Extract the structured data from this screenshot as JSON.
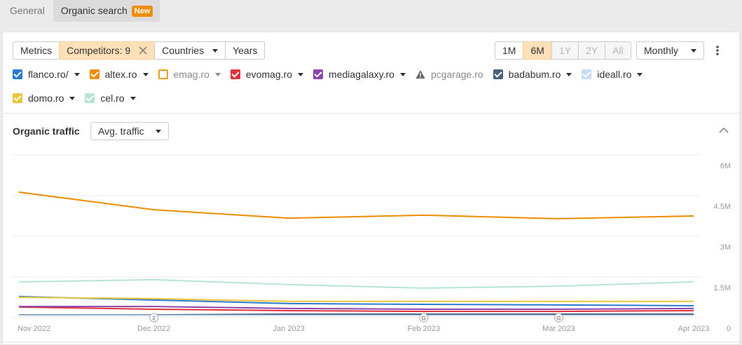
{
  "tabs": [
    {
      "label": "General",
      "active": false
    },
    {
      "label": "Organic search",
      "active": true,
      "badge": "New"
    }
  ],
  "toolbar": {
    "buttons": [
      {
        "label": "Metrics"
      },
      {
        "label": "Competitors: 9",
        "highlighted": true,
        "clearable": true
      },
      {
        "label": "Countries",
        "dropdown": true
      },
      {
        "label": "Years"
      }
    ],
    "ranges": [
      {
        "label": "1M",
        "state": "normal"
      },
      {
        "label": "6M",
        "state": "active"
      },
      {
        "label": "1Y",
        "state": "disabled"
      },
      {
        "label": "2Y",
        "state": "disabled"
      },
      {
        "label": "All",
        "state": "disabled"
      }
    ],
    "interval": "Monthly"
  },
  "section": {
    "title": "Organic traffic",
    "metric": "Avg. traffic"
  },
  "chart_data": {
    "type": "line",
    "categories": [
      "Nov 2022",
      "Dec 2022",
      "Jan 2023",
      "Feb 2023",
      "Mar 2023",
      "Apr 2023"
    ],
    "ylim": [
      0,
      6000000
    ],
    "yticks": [
      0,
      {
        "value": 1500000,
        "label": "1.5M"
      },
      {
        "value": 3000000,
        "label": "3M"
      },
      {
        "value": 4500000,
        "label": "4.5M"
      },
      {
        "value": 6000000,
        "label": "6M"
      }
    ],
    "grid": true,
    "annotations": [
      {
        "x": "Dec 2022",
        "label": "2"
      },
      {
        "x": "Feb 2023",
        "label": "G"
      },
      {
        "x": "Mar 2023",
        "label": "G"
      }
    ],
    "series": [
      {
        "name": "flanco.ro/",
        "color": "#2b7bd0",
        "checked": true,
        "values": [
          780000,
          650000,
          520000,
          490000,
          470000,
          440000
        ]
      },
      {
        "name": "altex.ro",
        "color": "#f08c00",
        "checked": true,
        "values": [
          4630000,
          3980000,
          3670000,
          3780000,
          3650000,
          3750000
        ]
      },
      {
        "name": "emag.ro",
        "color": "#f59a1b",
        "checked": false,
        "values": [
          null,
          null,
          null,
          null,
          null,
          null
        ]
      },
      {
        "name": "evomag.ro",
        "color": "#e0323c",
        "checked": true,
        "values": [
          390000,
          310000,
          260000,
          230000,
          230000,
          260000
        ]
      },
      {
        "name": "mediagalaxy.ro",
        "color": "#8e44ad",
        "checked": true,
        "values": [
          410000,
          410000,
          340000,
          310000,
          310000,
          340000
        ]
      },
      {
        "name": "pcgarage.ro",
        "color": "#888888",
        "checked": false,
        "warning": true,
        "values": [
          null,
          null,
          null,
          null,
          null,
          null
        ]
      },
      {
        "name": "badabum.ro",
        "color": "#4a5f7b",
        "checked": true,
        "values": [
          100000,
          100000,
          130000,
          130000,
          130000,
          130000
        ]
      },
      {
        "name": "ideall.ro",
        "color": "#c6def3",
        "checked": true,
        "values": [
          80000,
          80000,
          80000,
          80000,
          80000,
          80000
        ]
      },
      {
        "name": "domo.ro",
        "color": "#ecc53a",
        "checked": true,
        "values": [
          750000,
          700000,
          600000,
          600000,
          600000,
          600000
        ]
      },
      {
        "name": "cel.ro",
        "color": "#b7e4d8",
        "checked": true,
        "values": [
          1320000,
          1400000,
          1220000,
          1090000,
          1160000,
          1320000
        ]
      }
    ]
  }
}
